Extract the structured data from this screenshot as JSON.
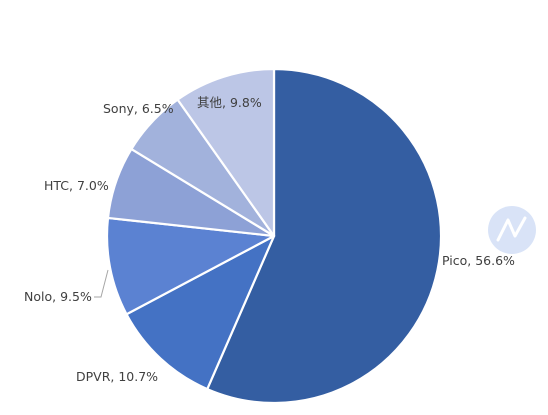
{
  "chart_data": {
    "type": "pie",
    "title": "",
    "legend": "none",
    "start_angle_deg": 0,
    "direction": "clockwise",
    "slices": [
      {
        "name": "Pico",
        "value": 56.6,
        "label": "Pico, 56.6%",
        "color": "#345ea2"
      },
      {
        "name": "DPVR",
        "value": 10.7,
        "label": "DPVR, 10.7%",
        "color": "#4472c4"
      },
      {
        "name": "Nolo",
        "value": 9.5,
        "label": "Nolo, 9.5%",
        "color": "#5b82d2"
      },
      {
        "name": "HTC",
        "value": 7.0,
        "label": "HTC, 7.0%",
        "color": "#8da1d6"
      },
      {
        "name": "Sony",
        "value": 6.5,
        "label": "Sony, 6.5%",
        "color": "#a2b2dc"
      },
      {
        "name": "其他",
        "value": 9.8,
        "label": "其他, 9.8%",
        "color": "#bcc6e6"
      }
    ]
  }
}
